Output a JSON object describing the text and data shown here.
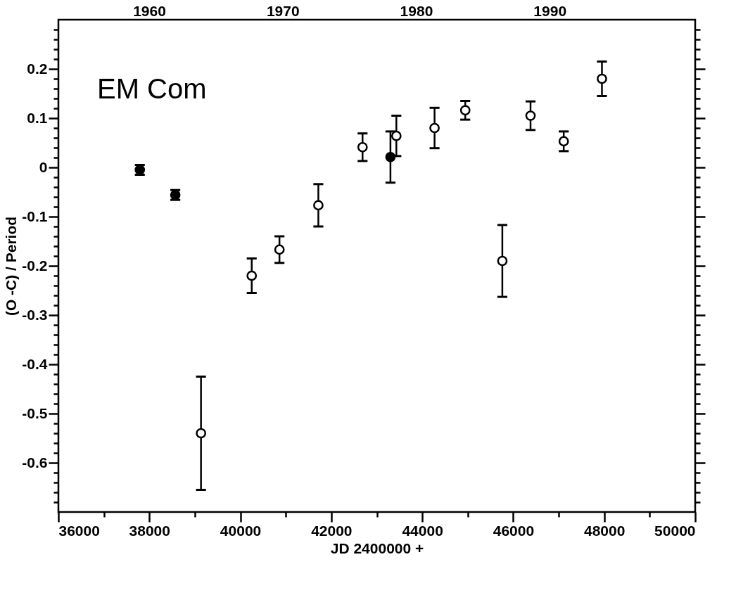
{
  "chart_data": {
    "type": "scatter",
    "xlabel": "JD 2400000 +",
    "ylabel": "(O -C)  / Period",
    "annotations": [
      "EM Com"
    ],
    "xlim": [
      36000,
      50000
    ],
    "xticks": [
      36000,
      {
        "value": 37000,
        "label": null
      },
      38000,
      {
        "value": 39000,
        "label": null
      },
      40000,
      {
        "value": 41000,
        "label": null
      },
      42000,
      {
        "value": 43000,
        "label": null
      },
      44000,
      {
        "value": 45000,
        "label": null
      },
      46000,
      {
        "value": 47000,
        "label": null
      },
      48000,
      {
        "value": 49000,
        "label": null
      },
      50000
    ],
    "x2lim": [
      1953.2,
      2000.9
    ],
    "x2ticks": [
      1960,
      1970,
      1980,
      1990
    ],
    "ylim": [
      -0.7,
      0.3
    ],
    "yticks": [
      {
        "value": -0.68,
        "label": null
      },
      {
        "value": -0.66,
        "label": null
      },
      {
        "value": -0.64,
        "label": null
      },
      {
        "value": -0.62,
        "label": null
      },
      -0.6,
      {
        "value": -0.58,
        "label": null
      },
      {
        "value": -0.56,
        "label": null
      },
      {
        "value": -0.54,
        "label": null
      },
      {
        "value": -0.52,
        "label": null
      },
      -0.5,
      {
        "value": -0.48,
        "label": null
      },
      {
        "value": -0.46,
        "label": null
      },
      {
        "value": -0.44,
        "label": null
      },
      {
        "value": -0.42,
        "label": null
      },
      -0.4,
      {
        "value": -0.38,
        "label": null
      },
      {
        "value": -0.36,
        "label": null
      },
      {
        "value": -0.34,
        "label": null
      },
      {
        "value": -0.32,
        "label": null
      },
      -0.3,
      {
        "value": -0.28,
        "label": null
      },
      {
        "value": -0.26,
        "label": null
      },
      {
        "value": -0.24,
        "label": null
      },
      {
        "value": -0.22,
        "label": null
      },
      -0.2,
      {
        "value": -0.18,
        "label": null
      },
      {
        "value": -0.16,
        "label": null
      },
      {
        "value": -0.14,
        "label": null
      },
      {
        "value": -0.12,
        "label": null
      },
      -0.1,
      {
        "value": -0.08,
        "label": null
      },
      {
        "value": -0.06,
        "label": null
      },
      {
        "value": -0.04,
        "label": null
      },
      {
        "value": -0.02,
        "label": null
      },
      0,
      {
        "value": 0.02,
        "label": null
      },
      {
        "value": 0.04,
        "label": null
      },
      {
        "value": 0.06,
        "label": null
      },
      {
        "value": 0.08,
        "label": null
      },
      0.1,
      {
        "value": 0.12,
        "label": null
      },
      {
        "value": 0.14,
        "label": null
      },
      {
        "value": 0.16,
        "label": null
      },
      {
        "value": 0.18,
        "label": null
      },
      0.2,
      {
        "value": 0.22,
        "label": null
      },
      {
        "value": 0.24,
        "label": null
      },
      {
        "value": 0.26,
        "label": null
      },
      {
        "value": 0.28,
        "label": null
      }
    ],
    "grid": false,
    "legend": false,
    "marker": "circle",
    "series": [
      {
        "color": "#000000",
        "x": [
          37790,
          38570,
          43300
        ],
        "values": [
          -0.005,
          -0.056,
          0.021
        ],
        "errors": [
          0.01,
          0.01,
          0.052
        ]
      },
      {
        "color": "#ffffff",
        "x": [
          39135,
          40250,
          40860,
          41715,
          42687,
          43430,
          44270,
          44945,
          45760,
          46380,
          47110,
          47950
        ],
        "values": [
          -0.54,
          -0.22,
          -0.167,
          -0.077,
          0.041,
          0.064,
          0.08,
          0.116,
          -0.19,
          0.105,
          0.053,
          0.18
        ],
        "errors": [
          0.115,
          0.035,
          0.027,
          0.043,
          0.028,
          0.041,
          0.041,
          0.019,
          0.073,
          0.029,
          0.02,
          0.035
        ]
      }
    ]
  }
}
